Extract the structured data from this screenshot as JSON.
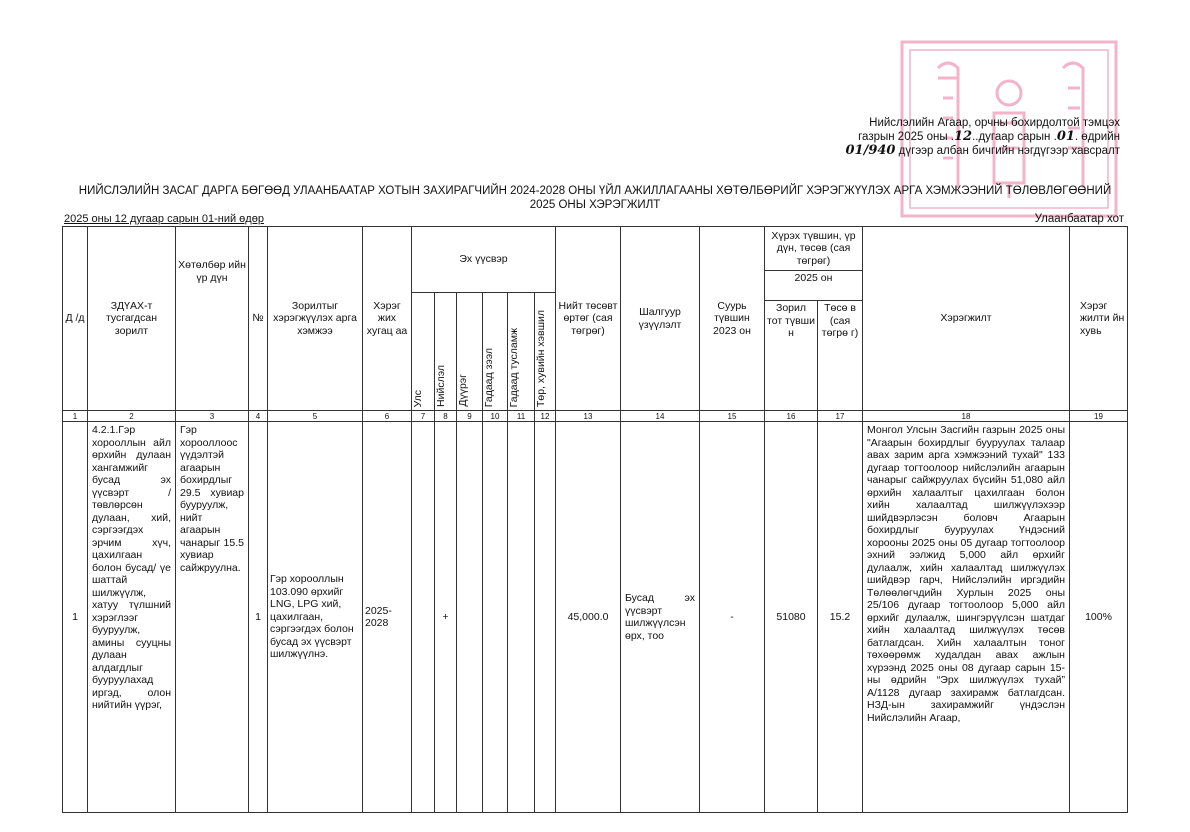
{
  "annex": {
    "line1": "Нийслэлийн Агаар, орчны бохирдолтой тэмцэх",
    "line2_a": "газрын 2025 оны .",
    "month_hw": "12",
    "line2_b": "..дугаар сарын .",
    "day_hw": "01",
    "line2_c": ". өдрийн",
    "number_hw": "01/940",
    "line3": " дүгээр албан бичгийн нэгдүгээр хавсралт"
  },
  "stamp": {
    "color": "#f2a6c0"
  },
  "title": {
    "line1": "НИЙСЛЭЛИЙН ЗАСАГ ДАРГА БӨГӨӨД УЛААНБААТАР ХОТЫН ЗАХИРАГЧИЙН 2024-2028 ОНЫ ҮЙЛ АЖИЛЛАГААНЫ ХӨТӨЛБӨРИЙГ ХЭРЭГЖҮҮЛЭХ АРГА ХЭМЖЭЭНИЙ ТӨЛӨВЛӨГӨӨНИЙ",
    "line2": "2025 ОНЫ ХЭРЭГЖИЛТ"
  },
  "date": "2025 оны 12 дугаар сарын 01-ний өдөр",
  "city": "Улаанбаатар хот",
  "table": {
    "headers": {
      "c1": "Д /д",
      "c2": "ЗДҮАХ-т тусгагдсан зорилт",
      "c3": "Хөтөлбөр ийн үр дүн",
      "c4": "№",
      "c5": "Зорилтыг хэрэгжүүлэх арга хэмжээ",
      "c6": "Хэрэг жих хугац аа",
      "source_group": "Эх үүсвэр",
      "sources": [
        "Улс",
        "Нийслэл",
        "Дүүрэг",
        "Гадаад зээл",
        "Гадаад тусламж",
        "Төр, хувийн хэвшил"
      ],
      "c13": "Нийт төсөвт өртөг (сая төгрөг)",
      "c14": "Шалгуур үзүүлэлт",
      "c15": "Суурь түвшин 2023 он",
      "target_group": "Хүрэх түвшин, үр дүн, төсөв (сая төгрөг)",
      "year": "2025 он",
      "c16": "Зорил тот түвши н",
      "c17": "Төсө в (сая төгрө г)",
      "c18": "Хэрэгжилт",
      "c19": "Хэрэг жилти йн хувь"
    },
    "column_numbers": [
      "1",
      "2",
      "3",
      "4",
      "5",
      "6",
      "7",
      "8",
      "9",
      "10",
      "11",
      "12",
      "13",
      "14",
      "15",
      "16",
      "17",
      "18",
      "19"
    ],
    "rows": [
      {
        "no": "1",
        "objective": "4.2.1.Гэр хорооллын айл өрхийн дулаан хангамжийг бусад эх үүсвэрт /төвлөрсөн дулаан, хий, сэргээгдэх эрчим хүч, цахилгаан болон бусад/ үе шаттай шилжүүлж, хатуу түлшний хэрэглээг бууруулж, амины сууцны дулаан алдагдлыг бууруулахад иргэд, олон нийтийн үүрэг,",
        "program_result": "Гэр хорооллоос үүдэлтэй агаарын бохирдлыг 29.5 хувиар бууруулж, нийт агаарын чанарыг 15.5 хувиар сайжруулна.",
        "item_no": "1",
        "measure": "Гэр хорооллын 103.090 өрхийг LNG, LPG хий, цахилгаан, сэргээгдэх болон бусад эх үүсвэрт шилжүүлнэ.",
        "period": "2025-2028",
        "sources": [
          "",
          "+",
          "",
          "",
          "",
          ""
        ],
        "total_cost": "45,000.0",
        "indicator": "Бусад эх үүсвэрт шилжүүлсэн өрх, тоо",
        "baseline": "-",
        "target": "51080",
        "budget": "15.2",
        "implementation": "Монгол Улсын Засгийн газрын 2025 оны \"Агаарын бохирдлыг бууруулах талаар авах зарим арга хэмжээний тухай\" 133 дугаар тогтоолоор нийслэлийн агаарын чанарыг сайжруулах бүсийн 51,080 айл өрхийн халаалтыг цахилгаан болон хийн халаалтад шилжүүлэхээр шийдвэрлэсэн боловч Агаарын бохирдлыг бууруулах Үндэсний хорооны 2025 оны 05 дугаар тогтоолоор эхний ээлжид 5,000 айл өрхийг дулаалж, хийн халаалтад шилжүүлэх шийдвэр гарч, Нийслэлийн иргэдийн Төлөөлөгчдийн Хурлын 2025 оны 25/106 дугаар тогтоолоор 5,000 айл өрхийг дулаалж, шингэрүүлсэн шатдаг хийн халаалтад шилжүүлэх төсөв батлагдсан. Хийн халаалтын тоног төхөөрөмж худалдан авах ажлын хүрээнд 2025 оны 08 дугаар сарын 15-ны өдрийн “Эрх шилжүүлэх тухай” А/1128 дугаар захирамж батлагдсан. НЗД-ын захирамжийг үндэслэн Нийслэлийн Агаар,",
        "percent": "100%"
      }
    ]
  }
}
